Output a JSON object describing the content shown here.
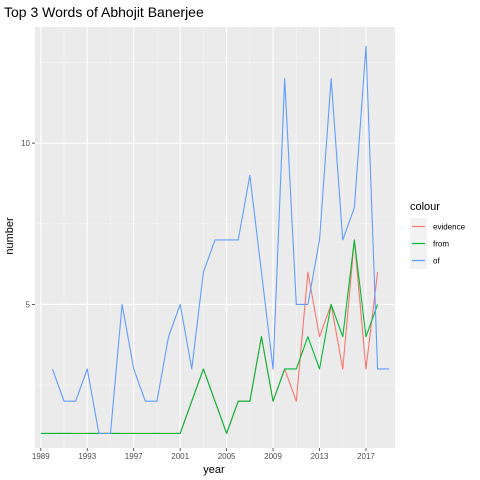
{
  "chart_data": {
    "type": "line",
    "title": "Top 3 Words of Abhojit Banerjee",
    "xlabel": "year",
    "ylabel": "number",
    "xlim": [
      1988.5,
      2019.5
    ],
    "ylim": [
      0.55,
      13.6
    ],
    "x_ticks": [
      1989,
      1993,
      1997,
      2001,
      2005,
      2009,
      2013,
      2017
    ],
    "y_ticks": [
      5,
      10
    ],
    "grid": true,
    "legend_title": "colour",
    "legend_position": "right",
    "x": [
      1989,
      1990,
      1991,
      1992,
      1993,
      1994,
      1995,
      1996,
      1997,
      1998,
      1999,
      2000,
      2001,
      2002,
      2003,
      2004,
      2005,
      2006,
      2007,
      2008,
      2009,
      2010,
      2011,
      2012,
      2013,
      2014,
      2015,
      2016,
      2017,
      2018,
      2019
    ],
    "series": [
      {
        "name": "evidence",
        "color": "#F8766D",
        "values": [
          1,
          1,
          1,
          1,
          1,
          1,
          1,
          1,
          1,
          1,
          1,
          1,
          1,
          2,
          3,
          2,
          1,
          2,
          2,
          4,
          2,
          3,
          2,
          6,
          4,
          5,
          3,
          7,
          3,
          6,
          null
        ]
      },
      {
        "name": "from",
        "color": "#00BA38",
        "values": [
          1,
          1,
          1,
          1,
          1,
          1,
          1,
          1,
          1,
          1,
          1,
          1,
          1,
          2,
          3,
          2,
          1,
          2,
          2,
          4,
          2,
          3,
          3,
          4,
          3,
          5,
          4,
          7,
          4,
          5,
          null
        ]
      },
      {
        "name": "of",
        "color": "#619CFF",
        "values": [
          null,
          3,
          2,
          2,
          3,
          1,
          1,
          5,
          3,
          2,
          2,
          4,
          5,
          3,
          6,
          7,
          7,
          7,
          9,
          6,
          3,
          12,
          5,
          5,
          7,
          12,
          7,
          8,
          13,
          3,
          3
        ]
      }
    ]
  }
}
